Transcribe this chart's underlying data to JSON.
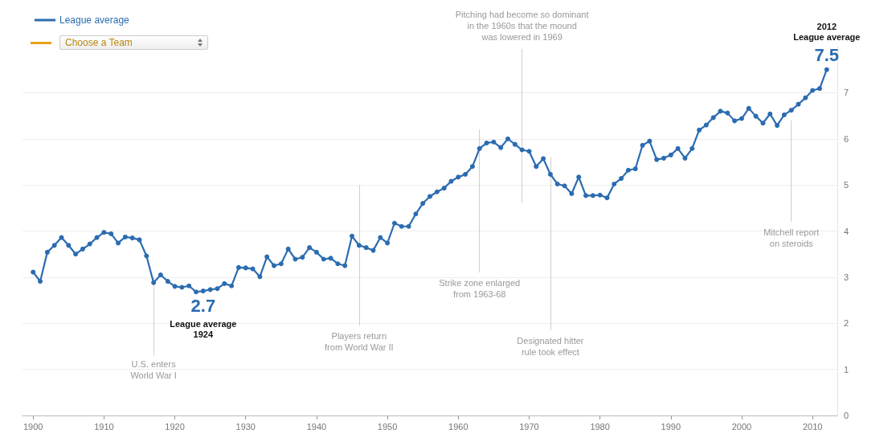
{
  "chart_data": {
    "type": "line",
    "x": [
      1900,
      1901,
      1902,
      1903,
      1904,
      1905,
      1906,
      1907,
      1908,
      1909,
      1910,
      1911,
      1912,
      1913,
      1914,
      1915,
      1916,
      1917,
      1918,
      1919,
      1920,
      1921,
      1922,
      1923,
      1924,
      1925,
      1926,
      1927,
      1928,
      1929,
      1930,
      1931,
      1932,
      1933,
      1934,
      1935,
      1936,
      1937,
      1938,
      1939,
      1940,
      1941,
      1942,
      1943,
      1944,
      1945,
      1946,
      1947,
      1948,
      1949,
      1950,
      1951,
      1952,
      1953,
      1954,
      1955,
      1956,
      1957,
      1958,
      1959,
      1960,
      1961,
      1962,
      1963,
      1964,
      1965,
      1966,
      1967,
      1968,
      1969,
      1970,
      1971,
      1972,
      1973,
      1974,
      1975,
      1976,
      1977,
      1978,
      1979,
      1980,
      1981,
      1982,
      1983,
      1984,
      1985,
      1986,
      1987,
      1988,
      1989,
      1990,
      1991,
      1992,
      1993,
      1994,
      1995,
      1996,
      1997,
      1998,
      1999,
      2000,
      2001,
      2002,
      2003,
      2004,
      2005,
      2006,
      2007,
      2008,
      2009,
      2010,
      2011,
      2012
    ],
    "series": [
      {
        "name": "League average",
        "color": "#2b6cb0",
        "values": [
          3.11,
          2.91,
          3.54,
          3.69,
          3.86,
          3.69,
          3.5,
          3.61,
          3.72,
          3.86,
          3.97,
          3.94,
          3.74,
          3.87,
          3.85,
          3.81,
          3.46,
          2.88,
          3.05,
          2.91,
          2.8,
          2.78,
          2.81,
          2.68,
          2.7,
          2.73,
          2.75,
          2.86,
          2.81,
          3.21,
          3.2,
          3.18,
          3.01,
          3.44,
          3.25,
          3.29,
          3.61,
          3.39,
          3.43,
          3.64,
          3.54,
          3.39,
          3.41,
          3.29,
          3.25,
          3.89,
          3.69,
          3.64,
          3.58,
          3.86,
          3.74,
          4.17,
          4.1,
          4.1,
          4.37,
          4.6,
          4.75,
          4.85,
          4.93,
          5.08,
          5.17,
          5.23,
          5.4,
          5.79,
          5.91,
          5.93,
          5.81,
          6.0,
          5.88,
          5.76,
          5.73,
          5.4,
          5.57,
          5.23,
          5.02,
          4.98,
          4.81,
          5.17,
          4.77,
          4.77,
          4.78,
          4.72,
          5.02,
          5.14,
          5.32,
          5.35,
          5.86,
          5.95,
          5.55,
          5.58,
          5.65,
          5.79,
          5.58,
          5.79,
          6.19,
          6.3,
          6.46,
          6.6,
          6.56,
          6.39,
          6.44,
          6.66,
          6.49,
          6.34,
          6.54,
          6.29,
          6.52,
          6.62,
          6.75,
          6.89,
          7.05,
          7.09,
          7.5
        ],
        "value_labels": [
          null,
          null,
          null,
          null,
          null,
          null,
          null,
          null,
          null,
          null,
          null,
          null,
          null,
          null,
          null,
          null,
          null,
          null,
          null,
          null,
          null,
          null,
          null,
          null,
          "2.7",
          null,
          null,
          null,
          null,
          null,
          null,
          null,
          null,
          null,
          null,
          null,
          null,
          null,
          null,
          null,
          null,
          null,
          null,
          null,
          null,
          null,
          null,
          null,
          null,
          null,
          null,
          null,
          null,
          null,
          null,
          null,
          null,
          null,
          null,
          null,
          null,
          null,
          null,
          null,
          null,
          null,
          null,
          null,
          null,
          null,
          null,
          null,
          null,
          null,
          null,
          null,
          null,
          null,
          null,
          null,
          null,
          null,
          null,
          null,
          null,
          null,
          null,
          null,
          null,
          null,
          null,
          null,
          null,
          null,
          null,
          null,
          null,
          null,
          null,
          null,
          null,
          null,
          null,
          null,
          null,
          null,
          null,
          null,
          null,
          null,
          null,
          null,
          "7.5"
        ]
      }
    ],
    "xlim": [
      1898.5,
      2013.5
    ],
    "xticks": [
      1900,
      1910,
      1920,
      1930,
      1940,
      1950,
      1960,
      1970,
      1980,
      1990,
      2000,
      2010
    ],
    "ylim": [
      0,
      8
    ],
    "yticks": [
      0,
      1,
      2,
      3,
      4,
      5,
      6,
      7
    ],
    "grid": "y",
    "legend": "top left",
    "marker": "circle",
    "line_style": "solid",
    "ref_lines": [
      {
        "axis": "x",
        "value": 1917,
        "label": "U.S. enters\nWorld War I"
      },
      {
        "axis": "x",
        "value": 1946,
        "label": "Players return\nfrom World War II"
      },
      {
        "axis": "x",
        "value": 1963,
        "label": "Strike zone enlarged\nfrom 1963-68"
      },
      {
        "axis": "x",
        "value": 1969,
        "label": "Pitching had become so dominant\nin the 1960s that the mound\nwas lowered in 1969"
      },
      {
        "axis": "x",
        "value": 1973,
        "label": "Designated hitter\nrule took effect"
      },
      {
        "axis": "x",
        "value": 2007,
        "label": "Mitchell report\non steroids"
      }
    ],
    "annotations": [
      "Choose a Team",
      "League average\n1924",
      "2012\nLeague average"
    ]
  }
}
